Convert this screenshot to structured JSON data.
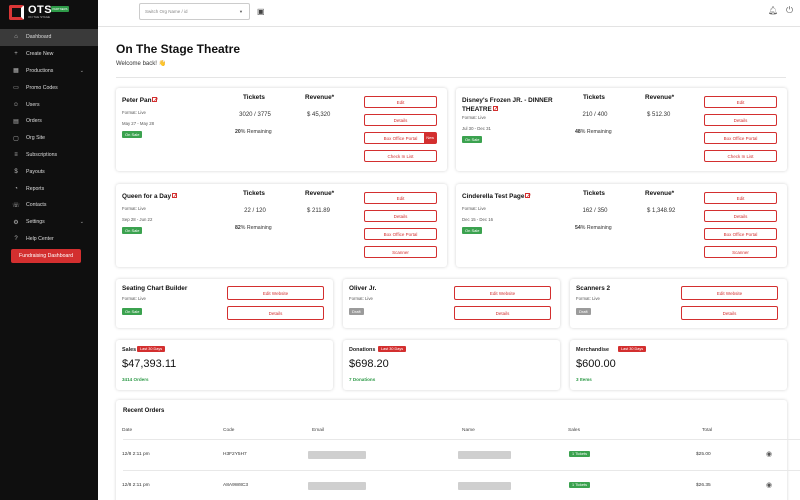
{
  "brand": {
    "name": "OTS",
    "tagline": "ON THE STAGE",
    "badge": "PARTNERS",
    "accent": "#d32f2f"
  },
  "sidebar": {
    "items": [
      {
        "label": "Dashboard",
        "icon": "home-icon",
        "glyph": "⌂",
        "active": true
      },
      {
        "label": "Create New",
        "icon": "plus-icon",
        "glyph": "+"
      },
      {
        "label": "Productions",
        "icon": "calendar-icon",
        "glyph": "▦",
        "chevron": true
      },
      {
        "label": "Promo Codes",
        "icon": "ticket-icon",
        "glyph": "▭"
      },
      {
        "label": "Users",
        "icon": "users-icon",
        "glyph": "☺"
      },
      {
        "label": "Orders",
        "icon": "cart-icon",
        "glyph": "▤"
      },
      {
        "label": "Org Site",
        "icon": "window-icon",
        "glyph": "▢"
      },
      {
        "label": "Subscriptions",
        "icon": "list-icon",
        "glyph": "≡"
      },
      {
        "label": "Payouts",
        "icon": "dollar-icon",
        "glyph": "$"
      },
      {
        "label": "Reports",
        "icon": "chart-icon",
        "glyph": "◔"
      },
      {
        "label": "Contacts",
        "icon": "contact-icon",
        "glyph": "☏"
      },
      {
        "label": "Settings",
        "icon": "gear-icon",
        "glyph": "⚙",
        "chevron": true
      },
      {
        "label": "Help Center",
        "icon": "help-icon",
        "glyph": "?"
      }
    ],
    "fundraising_button": "Fundraising Dashboard"
  },
  "topbar": {
    "org_placeholder": "Switch Org Name / id"
  },
  "header": {
    "title": "On The Stage Theatre",
    "welcome": "Welcome back! 👋"
  },
  "productions": [
    {
      "name": "Peter Pan",
      "format": "Format: Live",
      "dates": "May 27 - May 28",
      "status": "On Sale",
      "tickets_label": "Tickets",
      "revenue_label": "Revenue*",
      "tickets": "3020 / 3775",
      "revenue": "$ 45,320",
      "pct": "20",
      "remaining": "% Remaining",
      "buttons": [
        "Edit",
        "Details",
        "Box Office Portal",
        "Check In List"
      ],
      "new_badge": "New"
    },
    {
      "name": "Disney's Frozen JR. - DINNER THEATRE",
      "format": "Format: Live",
      "dates": "Jul 30 - Dec 31",
      "status": "On Sale",
      "tickets_label": "Tickets",
      "revenue_label": "Revenue*",
      "tickets": "210 / 400",
      "revenue": "$ 512.30",
      "pct": "48",
      "remaining": "% Remaining",
      "buttons": [
        "Edit",
        "Details",
        "Box Office Portal",
        "Check In List"
      ]
    },
    {
      "name": "Queen for a Day",
      "format": "Format: Live",
      "dates": "Sep 28 - Jun 22",
      "status": "On Sale",
      "tickets_label": "Tickets",
      "revenue_label": "Revenue*",
      "tickets": "22 / 120",
      "revenue": "$ 211.89",
      "pct": "82",
      "remaining": "% Remaining",
      "buttons": [
        "Edit",
        "Details",
        "Box Office Portal",
        "Scanner"
      ]
    },
    {
      "name": "Cinderella Test Page",
      "format": "Format: Live",
      "dates": "Dec 15 - Dec 16",
      "status": "On Sale",
      "tickets_label": "Tickets",
      "revenue_label": "Revenue*",
      "tickets": "162 / 350",
      "revenue": "$ 1,348.92",
      "pct": "54",
      "remaining": "% Remaining",
      "buttons": [
        "Edit",
        "Details",
        "Box Office Portal",
        "Scanner"
      ]
    }
  ],
  "small_productions": [
    {
      "name": "Seating Chart Builder",
      "format": "Format: Live",
      "status": "On Sale",
      "edit": "Edit Website",
      "details": "Details"
    },
    {
      "name": "Oliver Jr.",
      "format": "Format: Live",
      "status": "Draft",
      "edit": "Edit Website",
      "details": "Details"
    },
    {
      "name": "Scanners 2",
      "format": "Format: Live",
      "status": "Draft",
      "edit": "Edit Website",
      "details": "Details"
    }
  ],
  "stats": [
    {
      "label": "Sales",
      "pill": "Last 30 Days",
      "value": "$47,393.11",
      "sub": "3414 Orders"
    },
    {
      "label": "Donations",
      "pill": "Last 30 Days",
      "value": "$698.20",
      "sub": "7 Donations"
    },
    {
      "label": "Merchandise",
      "pill": "Last 30 Days",
      "value": "$600.00",
      "sub": "3 Items"
    }
  ],
  "orders": {
    "title": "Recent Orders",
    "columns": [
      "Date",
      "Code",
      "Email",
      "Name",
      "Sales",
      "Total"
    ],
    "rows": [
      {
        "date": "12/8 2:11 pm",
        "code": "H3F2Y5H7",
        "sales": "1 Tickets",
        "total": "$25.00"
      },
      {
        "date": "12/8 2:11 pm",
        "code": "A8A9W8C3",
        "sales": "1 Tickets",
        "total": "$26.35"
      }
    ]
  }
}
